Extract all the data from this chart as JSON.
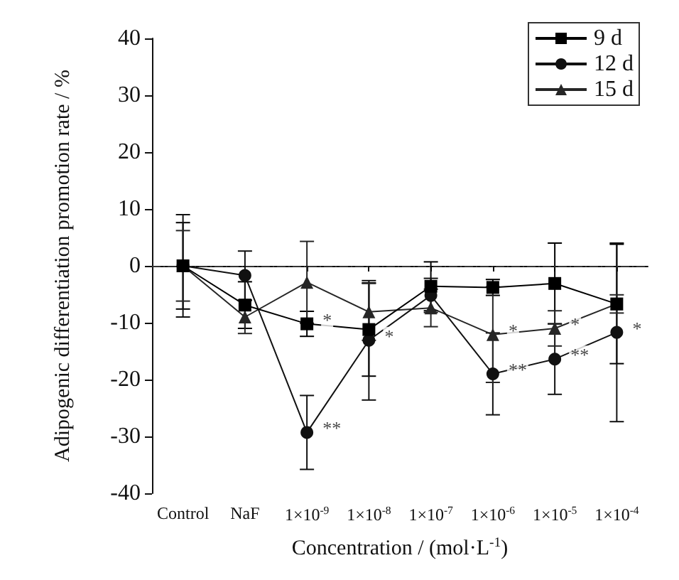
{
  "chart_data": {
    "type": "line",
    "xlabel": "Concentration / (mol·L$^{-1}$)",
    "ylabel": "Adipogenic differentiation promotion rate / %",
    "categories": [
      "Control",
      "NaF",
      "1×10$^{-9}$",
      "1×10$^{-8}$",
      "1×10$^{-7}$",
      "1×10$^{-6}$",
      "1×10$^{-5}$",
      "1×10$^{-4}$"
    ],
    "series": [
      {
        "name": "9 d",
        "color": "#000000",
        "marker": "square",
        "values": [
          0,
          -6.9,
          -10.2,
          -11.2,
          -3.6,
          -3.8,
          -3.1,
          -6.7
        ],
        "errors": [
          7.6,
          4.1,
          2.2,
          8.2,
          4.3,
          1.4,
          7.1,
          10.5
        ]
      },
      {
        "name": "12 d",
        "color": "#111111",
        "marker": "circle",
        "values": [
          0,
          -1.7,
          -29.3,
          -13.1,
          -5.2,
          -19,
          -16.4,
          -11.7
        ],
        "errors": [
          9,
          4.3,
          6.5,
          10.5,
          3,
          7.2,
          6.2,
          15.7
        ]
      },
      {
        "name": "15 d",
        "color": "#262626",
        "marker": "triangle",
        "values": [
          0,
          -9,
          -2.9,
          -8.1,
          -7.4,
          -12.1,
          -11,
          -6.7
        ],
        "errors": [
          6.2,
          2.9,
          7.2,
          5,
          3.3,
          8.4,
          3.1,
          1.6
        ]
      }
    ],
    "ylim": [
      -40,
      40
    ],
    "yticks": [
      -40,
      -30,
      -20,
      -10,
      0,
      10,
      20,
      30,
      40
    ],
    "grid": false,
    "legend": "top right",
    "line_style": "solid",
    "ref_lines": [
      {
        "axis": "y",
        "value": 0,
        "line_style": "dashdot",
        "color": "#333333"
      }
    ],
    "annotations": [
      {
        "text": "*",
        "x": "1×10$^{-9}$",
        "y": -10.2
      },
      {
        "text": "**",
        "x": "1×10$^{-9}$",
        "y": -29.3
      },
      {
        "text": "*",
        "x": "1×10$^{-8}$",
        "y": -13.1
      },
      {
        "text": "*",
        "x": "1×10$^{-6}$",
        "y": -12.1
      },
      {
        "text": "**",
        "x": "1×10$^{-6}$",
        "y": -19
      },
      {
        "text": "*",
        "x": "1×10$^{-5}$",
        "y": -11
      },
      {
        "text": "**",
        "x": "1×10$^{-5}$",
        "y": -16.4
      },
      {
        "text": "*",
        "x": "1×10$^{-4}$",
        "y": -11.7
      }
    ]
  }
}
